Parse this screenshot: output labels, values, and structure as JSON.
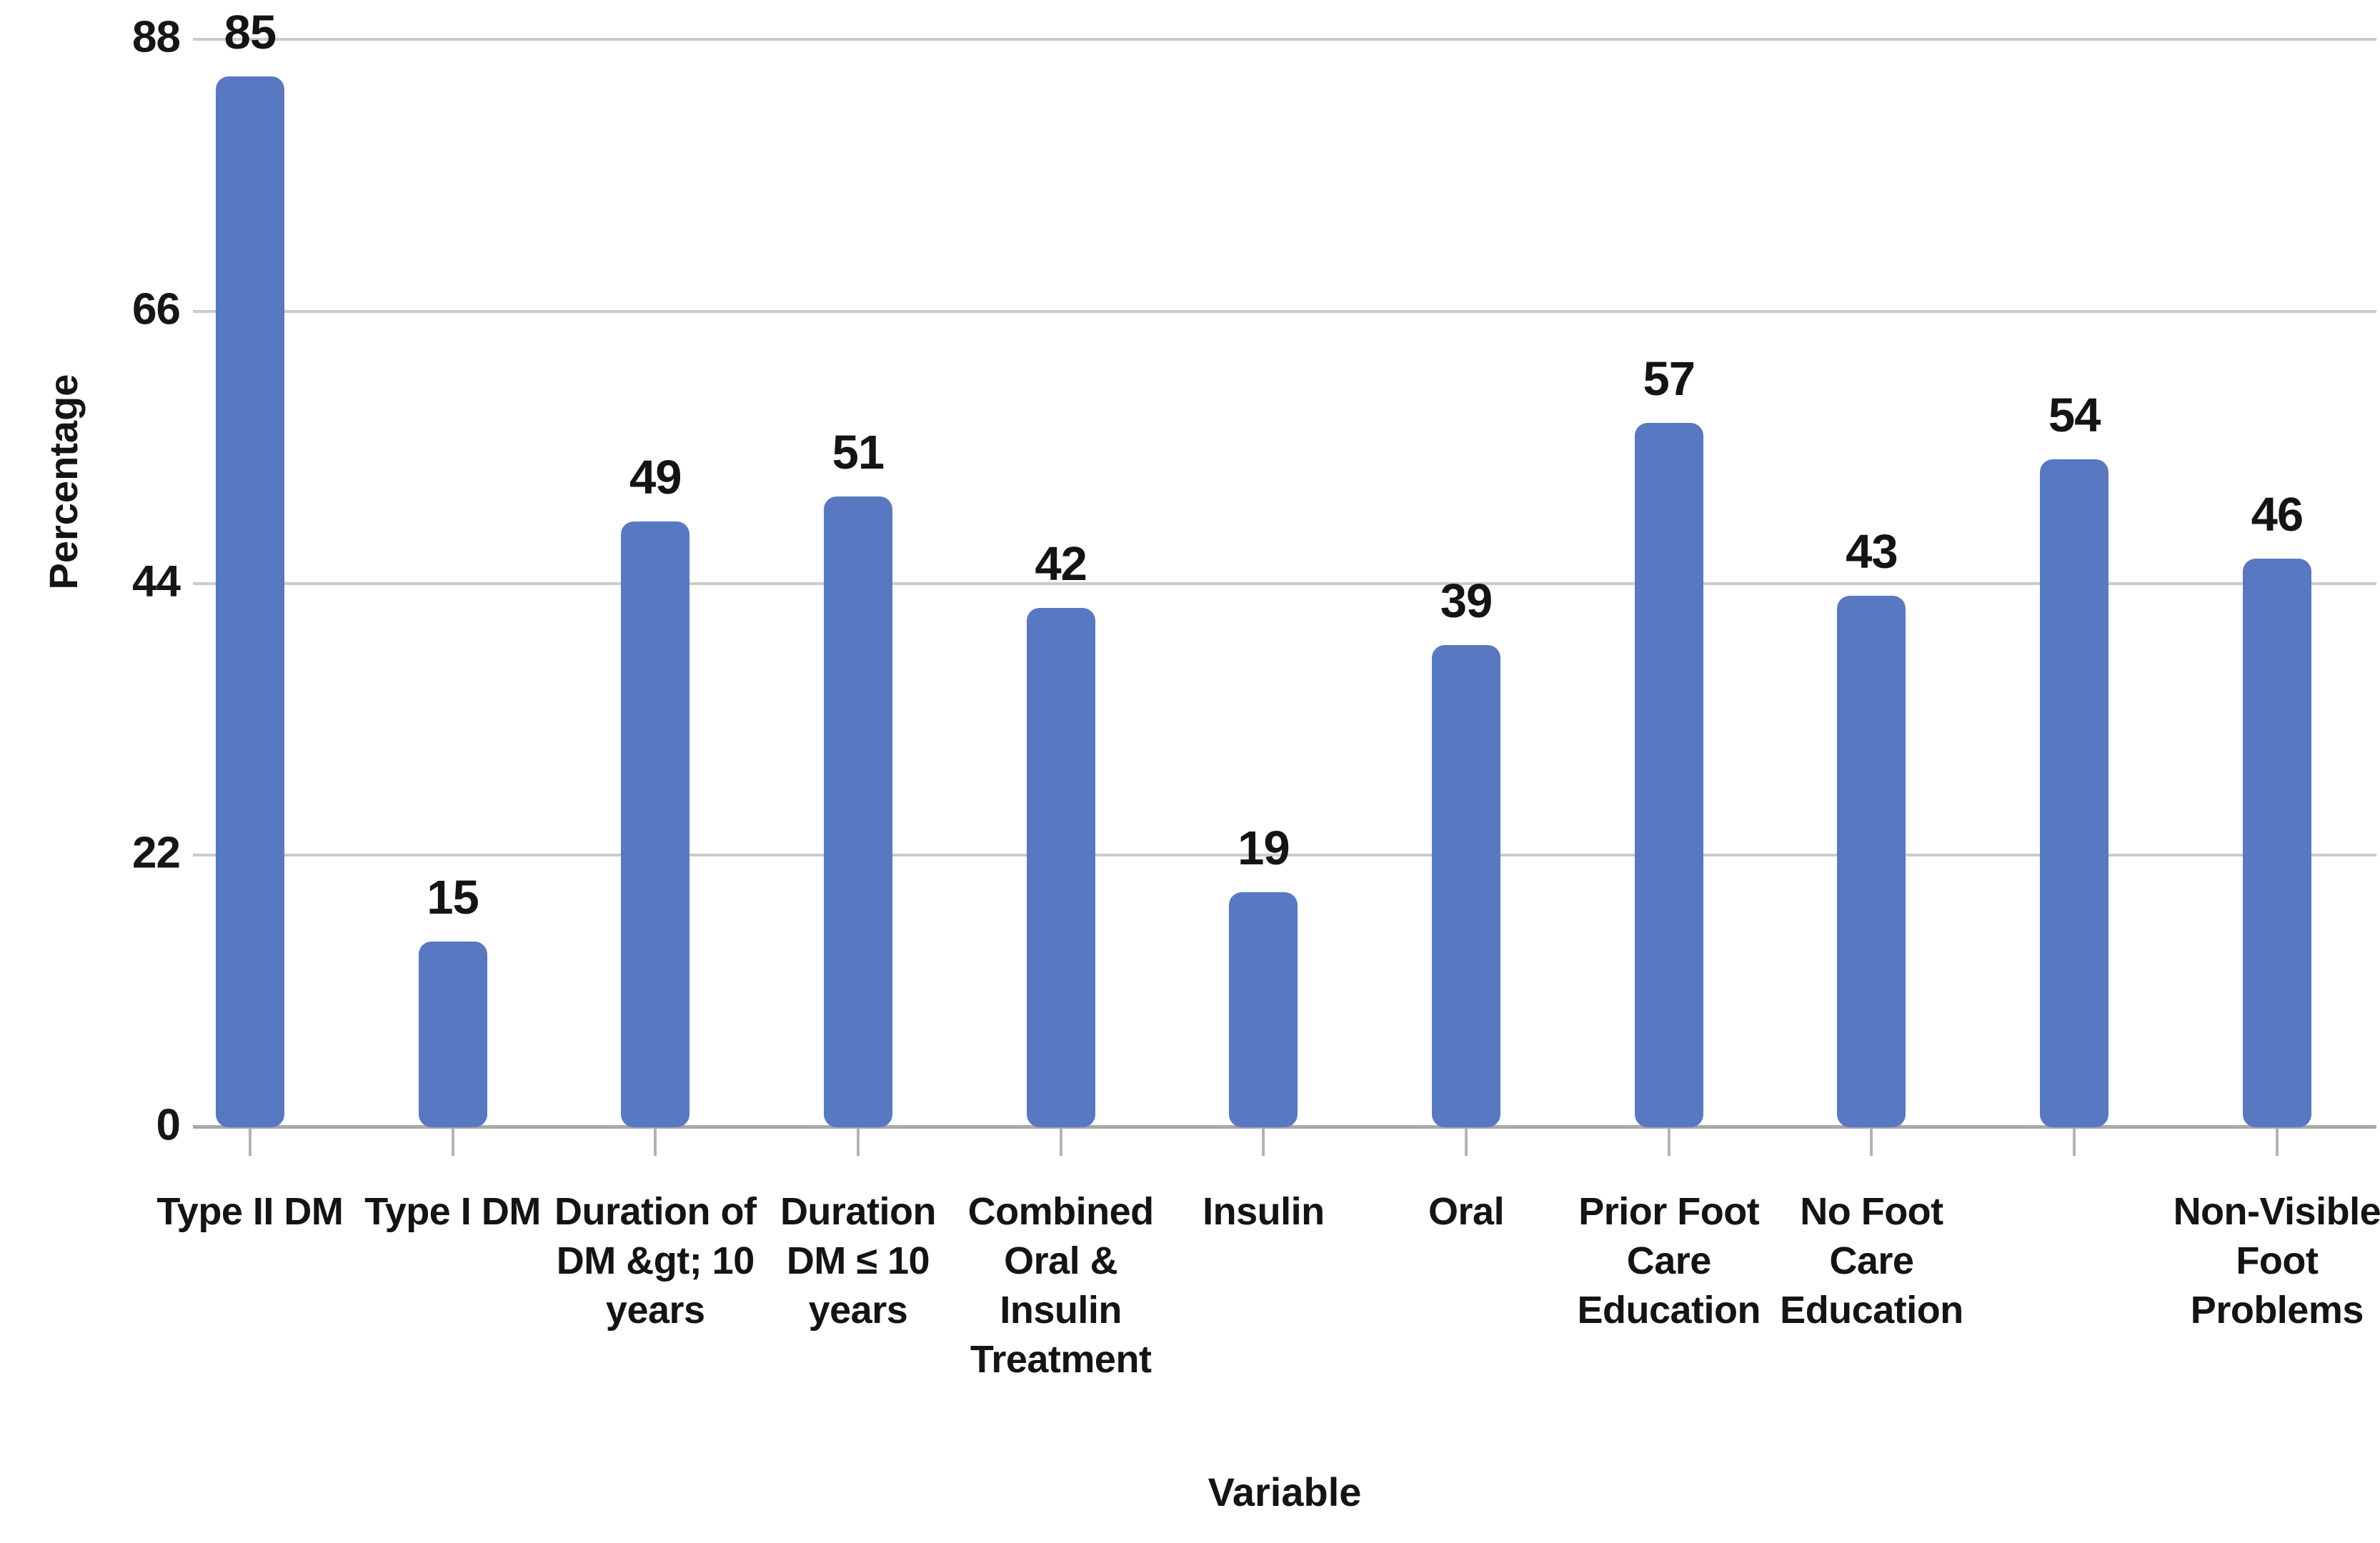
{
  "chart_data": {
    "type": "bar",
    "title": "",
    "ylabel": "Percentage",
    "xlabel": "Variable",
    "categories": [
      "Type II DM",
      "Type I DM",
      "Duration of\nDM &gt; 10\nyears",
      "Duration\nDM ≤ 10\nyears",
      "Combined\nOral &\nInsulin\nTreatment",
      "Insulin",
      "Oral",
      "Prior Foot\nCare\nEducation",
      "No Foot\nCare\nEducation",
      "",
      "Non-Visible\nFoot\nProblems"
    ],
    "values": [
      85,
      15,
      49,
      51,
      42,
      19,
      39,
      57,
      43,
      54,
      46
    ],
    "y_ticks": [
      0,
      22,
      44,
      66,
      88
    ],
    "ylim": [
      0,
      88
    ],
    "grid": "horizontal",
    "legend_position": "none",
    "colors": {
      "bar": "#5878C2",
      "gridline": "#cbcbcb",
      "axis_line": "#a9a9a9",
      "tick_mark": "#b3b3b3",
      "text": "#141414"
    }
  }
}
